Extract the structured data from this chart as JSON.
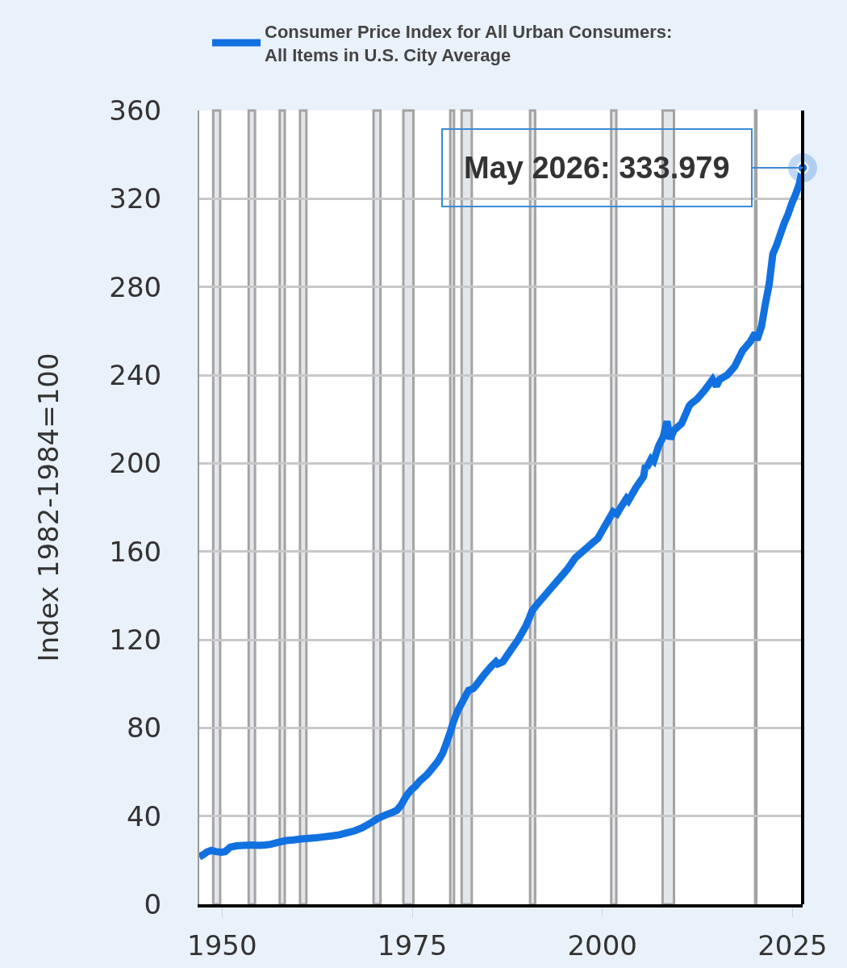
{
  "chart_data": {
    "type": "line",
    "ylabel": "Index 1982-1984=100",
    "x": [
      "1947-01",
      "1947-08",
      "1948-01",
      "1948-08",
      "1949-03",
      "1949-12",
      "1950-06",
      "1951-02",
      "1951-12",
      "1952-12",
      "1953-10",
      "1954-12",
      "1955-09",
      "1956-06",
      "1957-06",
      "1958-06",
      "1959-06",
      "1960-06",
      "1961-06",
      "1962-06",
      "1963-06",
      "1964-06",
      "1965-06",
      "1966-06",
      "1967-06",
      "1968-06",
      "1969-06",
      "1970-06",
      "1971-06",
      "1972-06",
      "1973-01",
      "1973-08",
      "1974-01",
      "1974-06",
      "1975-01",
      "1975-06",
      "1976-01",
      "1976-12",
      "1977-06",
      "1978-06",
      "1979-01",
      "1979-06",
      "1980-01",
      "1980-06",
      "1981-01",
      "1981-06",
      "1982-01",
      "1982-06",
      "1983-01",
      "1983-06",
      "1984-06",
      "1985-06",
      "1986-01",
      "1986-04",
      "1986-12",
      "1987-12",
      "1988-12",
      "1989-12",
      "1990-06",
      "1990-10",
      "1991-06",
      "1992-06",
      "1993-06",
      "1994-06",
      "1995-06",
      "1996-06",
      "1997-06",
      "1998-06",
      "1999-06",
      "2000-06",
      "2001-06",
      "2001-12",
      "2002-06",
      "2003-03",
      "2003-06",
      "2004-06",
      "2005-06",
      "2005-09",
      "2005-11",
      "2006-06",
      "2006-10",
      "2007-06",
      "2008-01",
      "2008-07",
      "2008-12",
      "2009-06",
      "2010-06",
      "2011-06",
      "2011-09",
      "2012-06",
      "2013-06",
      "2014-07",
      "2015-01",
      "2015-06",
      "2016-06",
      "2017-06",
      "2018-06",
      "2019-06",
      "2020-02",
      "2020-05",
      "2020-12",
      "2021-06",
      "2021-12",
      "2022-06",
      "2022-12",
      "2023-06",
      "2023-12",
      "2024-06",
      "2024-12",
      "2025-06",
      "2025-12",
      "2026-05"
    ],
    "series": [
      {
        "name": "Consumer Price Index for All Urban Consumers: All Items in U.S. City Average",
        "color": "#1271e0",
        "values": [
          21.5,
          22.6,
          23.7,
          24.4,
          23.9,
          23.6,
          23.9,
          25.9,
          26.5,
          26.7,
          26.9,
          26.7,
          26.9,
          27.2,
          28.1,
          28.9,
          29.2,
          29.6,
          29.9,
          30.2,
          30.6,
          31,
          31.5,
          32.4,
          33.3,
          34.7,
          36.6,
          38.8,
          40.4,
          41.7,
          42.7,
          45.2,
          47.8,
          50,
          52.3,
          53.5,
          55.9,
          58.7,
          60.7,
          65,
          68.5,
          72.3,
          78,
          82.7,
          87.9,
          90.6,
          94.4,
          97,
          97.8,
          99.4,
          104,
          108,
          110,
          109,
          110,
          115,
          120,
          126,
          130,
          133,
          136,
          140,
          144,
          148,
          152,
          157,
          160,
          163,
          166,
          172,
          178,
          177,
          180,
          184,
          183,
          189,
          194,
          199,
          198,
          202,
          201,
          208,
          212,
          219,
          211,
          215,
          218,
          226,
          227,
          229,
          233,
          238,
          235,
          238,
          240,
          244,
          251,
          255,
          259,
          256,
          262,
          272,
          281,
          295,
          299,
          304,
          309,
          313,
          318,
          322,
          327,
          333.979
        ]
      }
    ],
    "xlim": [
      "1947-01",
      "2026-05"
    ],
    "xticks": [
      "1950",
      "1975",
      "2000",
      "2025"
    ],
    "ylim": [
      0,
      360
    ],
    "yticks": [
      0,
      40,
      80,
      120,
      160,
      200,
      240,
      280,
      320,
      360
    ],
    "grid": "y",
    "legend": "top left",
    "bands": [
      {
        "axis": "x",
        "from": "1948-11",
        "to": "1949-10",
        "color": "#e3e7ec"
      },
      {
        "axis": "x",
        "from": "1953-07",
        "to": "1954-05",
        "color": "#e3e7ec"
      },
      {
        "axis": "x",
        "from": "1957-08",
        "to": "1958-04",
        "color": "#e3e7ec"
      },
      {
        "axis": "x",
        "from": "1960-04",
        "to": "1961-02",
        "color": "#e3e7ec"
      },
      {
        "axis": "x",
        "from": "1969-12",
        "to": "1970-11",
        "color": "#e3e7ec"
      },
      {
        "axis": "x",
        "from": "1973-11",
        "to": "1975-03",
        "color": "#e3e7ec"
      },
      {
        "axis": "x",
        "from": "1980-01",
        "to": "1980-07",
        "color": "#e3e7ec"
      },
      {
        "axis": "x",
        "from": "1981-07",
        "to": "1982-11",
        "color": "#e3e7ec"
      },
      {
        "axis": "x",
        "from": "1990-07",
        "to": "1991-03",
        "color": "#e3e7ec"
      },
      {
        "axis": "x",
        "from": "2001-03",
        "to": "2001-11",
        "color": "#e3e7ec"
      },
      {
        "axis": "x",
        "from": "2007-12",
        "to": "2009-06",
        "color": "#e3e7ec"
      },
      {
        "axis": "x",
        "from": "2020-02",
        "to": "2020-04",
        "color": "#e3e7ec"
      }
    ],
    "annotations": [
      {
        "text": "May 2026: 333.979",
        "x": "2026-05",
        "y": 333.979
      }
    ]
  }
}
